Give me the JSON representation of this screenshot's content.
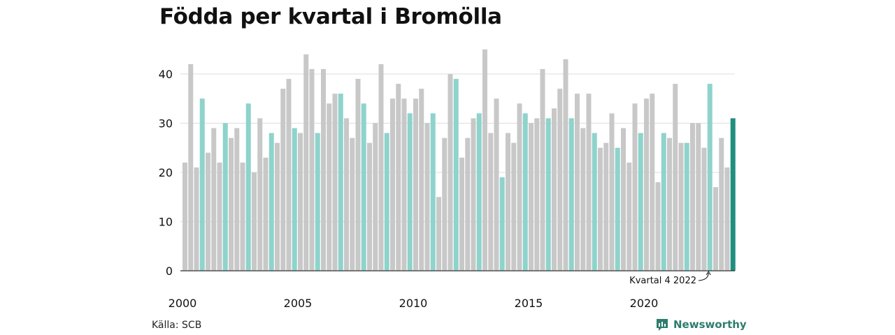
{
  "title": "Födda per kvartal i Bromölla",
  "source": "Källa: SCB",
  "brand": "Newsworthy",
  "colors": {
    "default": "#c8c8c8",
    "q4": "#8ed3cc",
    "latest": "#1f8f80",
    "grid": "#dddddd",
    "axis": "#333333"
  },
  "chart_data": {
    "type": "bar",
    "ylim": [
      0,
      45
    ],
    "yticks": [
      0,
      10,
      20,
      30,
      40
    ],
    "xticks": [
      "2000",
      "2005",
      "2010",
      "2015",
      "2020"
    ],
    "highlight_rule": "every fourth quarter colored, last bar dark",
    "annotation": "Kvartal 4 2022",
    "values": [
      22,
      42,
      21,
      35,
      24,
      29,
      22,
      30,
      27,
      29,
      22,
      34,
      20,
      31,
      23,
      28,
      26,
      37,
      39,
      29,
      28,
      44,
      41,
      28,
      41,
      34,
      36,
      36,
      31,
      27,
      39,
      34,
      26,
      30,
      42,
      28,
      35,
      38,
      35,
      32,
      35,
      37,
      30,
      32,
      15,
      27,
      40,
      39,
      23,
      27,
      31,
      32,
      45,
      28,
      35,
      19,
      28,
      26,
      34,
      32,
      30,
      31,
      41,
      31,
      33,
      37,
      43,
      31,
      36,
      29,
      36,
      28,
      25,
      26,
      32,
      25,
      29,
      22,
      34,
      28,
      35,
      36,
      18,
      28,
      27,
      38,
      26,
      26,
      30,
      30,
      25,
      38,
      17,
      27,
      21,
      31
    ]
  }
}
